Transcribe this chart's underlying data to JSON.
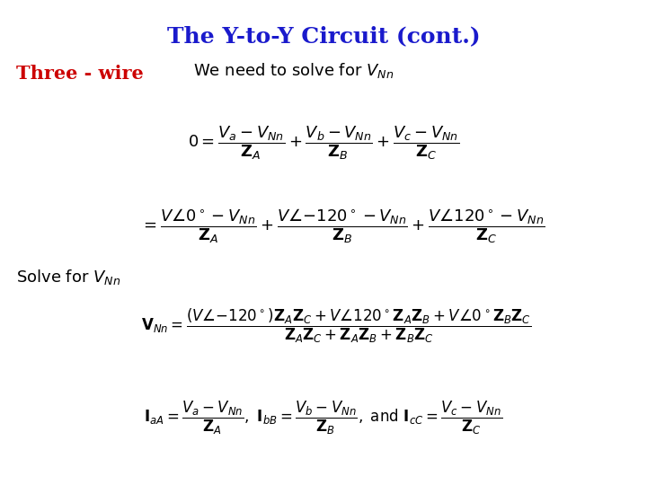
{
  "title": "The Y-to-Y Circuit (cont.)",
  "title_color": "#1a1aCC",
  "title_fontsize": 18,
  "background_color": "#FFFFFF",
  "three_wire_text": "Three - wire",
  "three_wire_color": "#CC0000",
  "three_wire_fontsize": 15,
  "we_need_text": "We need to solve for $V_{Nn}$",
  "we_need_fontsize": 13,
  "formula1": "$0 = \\dfrac{V_a - V_{Nn}}{\\mathbf{Z}_A} + \\dfrac{V_b - V_{Nn}}{\\mathbf{Z}_B} + \\dfrac{V_c - V_{Nn}}{\\mathbf{Z}_C}$",
  "formula1_fontsize": 13,
  "formula2": "$= \\dfrac{V\\angle 0^\\circ - V_{Nn}}{\\mathbf{Z}_A} + \\dfrac{V\\angle{-120^\\circ} - V_{Nn}}{\\mathbf{Z}_B} + \\dfrac{V\\angle 120^\\circ - V_{Nn}}{\\mathbf{Z}_C}$",
  "formula2_fontsize": 13,
  "solve_text": "Solve for $V_{Nn}$",
  "solve_fontsize": 13,
  "formula3": "$\\mathbf{V}_{Nn} = \\dfrac{(V\\angle{-120^\\circ})\\mathbf{Z}_A\\mathbf{Z}_C + V\\angle 120^\\circ\\mathbf{Z}_A\\mathbf{Z}_B + V\\angle 0^\\circ\\mathbf{Z}_B\\mathbf{Z}_C}{\\mathbf{Z}_A\\mathbf{Z}_C + \\mathbf{Z}_A\\mathbf{Z}_B + \\mathbf{Z}_B\\mathbf{Z}_C}$",
  "formula3_fontsize": 12,
  "formula4": "$\\mathbf{I}_{aA} = \\dfrac{V_a - V_{Nn}}{\\mathbf{Z}_A},\\ \\mathbf{I}_{bB} = \\dfrac{V_b - V_{Nn}}{\\mathbf{Z}_B},\\ \\text{and}\\ \\mathbf{I}_{cC} = \\dfrac{V_c - V_{Nn}}{\\mathbf{Z}_C}$",
  "formula4_fontsize": 12
}
